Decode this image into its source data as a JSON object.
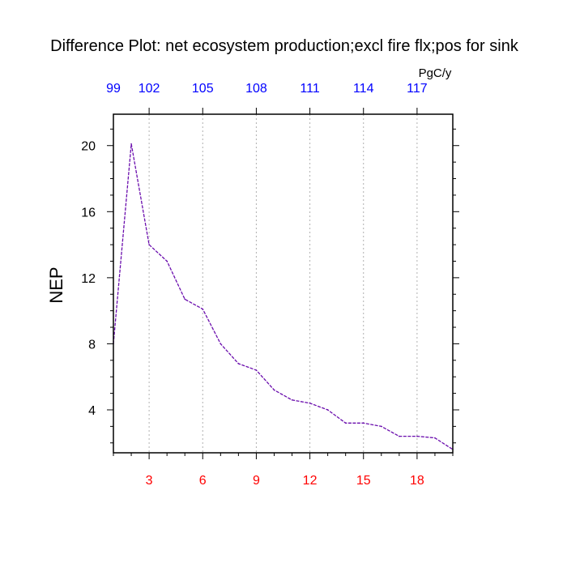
{
  "chart_data": {
    "type": "line",
    "title": "Difference Plot: net ecosystem production;excl fire flx;pos for sink",
    "units": "PgC/y",
    "ylabel": "NEP",
    "xlim": [
      1,
      20
    ],
    "ylim": [
      1.4,
      21.9
    ],
    "bottom_ticks": [
      3,
      6,
      9,
      12,
      15,
      18
    ],
    "top_ticks": [
      "99",
      "102",
      "105",
      "108",
      "111",
      "114",
      "117"
    ],
    "left_ticks": [
      4,
      8,
      12,
      16,
      20
    ],
    "grid": "dashed vertical at bottom ticks",
    "series": [
      {
        "color": "#6a0dad",
        "x": [
          1,
          2,
          3,
          4,
          5,
          6,
          7,
          8,
          9,
          10,
          11,
          12,
          13,
          14,
          15,
          16,
          17,
          18,
          19,
          20
        ],
        "values": [
          8.0,
          20.1,
          14.0,
          13.0,
          10.7,
          10.1,
          8.0,
          6.8,
          6.4,
          5.2,
          4.6,
          4.4,
          4.0,
          3.2,
          3.2,
          3.0,
          2.4,
          2.4,
          2.3,
          1.6
        ]
      }
    ],
    "colors": {
      "bottom_ticks": "#ff0000",
      "top_ticks": "#0000ff",
      "line": "#6a0dad"
    }
  }
}
